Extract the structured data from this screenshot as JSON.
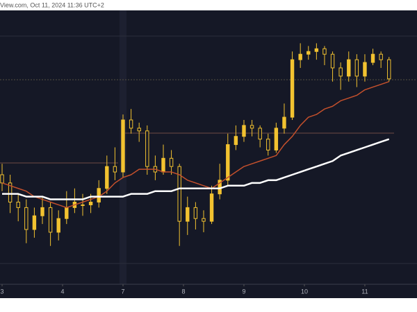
{
  "chart_data": {
    "type": "candlestick",
    "title": "View.com, Oct 11, 2024 11:36 UTC+2",
    "x": [
      0,
      1,
      2,
      3,
      4,
      5,
      6,
      7,
      8,
      9,
      10,
      11,
      12,
      13,
      14,
      15,
      16,
      17,
      18,
      19,
      20,
      21,
      22,
      23,
      24,
      25,
      26,
      27,
      28,
      29,
      30,
      31,
      32,
      33,
      34,
      35,
      36,
      37,
      38,
      39,
      40,
      41,
      42,
      43,
      44,
      45,
      46,
      47,
      48
    ],
    "open": [
      40,
      37,
      30,
      28,
      20,
      25,
      28,
      19,
      24,
      28,
      29,
      29,
      30,
      35,
      43,
      41,
      60,
      57,
      56,
      43,
      41,
      46,
      43,
      23,
      28,
      24,
      23,
      33,
      38,
      51,
      54,
      58,
      57,
      53,
      49,
      57,
      61,
      82,
      84,
      85,
      86,
      84,
      79,
      76,
      82,
      76,
      81,
      84,
      82
    ],
    "high": [
      44,
      40,
      33,
      31,
      28,
      32,
      30,
      27,
      34,
      35,
      33,
      33,
      38,
      47,
      50,
      62,
      64,
      59,
      58,
      47,
      51,
      49,
      44,
      32,
      30,
      27,
      36,
      44,
      55,
      58,
      60,
      60,
      58,
      55,
      59,
      66,
      85,
      88,
      87,
      88,
      87,
      85,
      81,
      85,
      84,
      84,
      86,
      85,
      83
    ],
    "low": [
      34,
      26,
      23,
      15,
      17,
      22,
      14,
      16,
      22,
      26,
      25,
      26,
      28,
      33,
      38,
      39,
      55,
      52,
      40,
      38,
      40,
      40,
      14,
      18,
      20,
      19,
      22,
      31,
      36,
      49,
      52,
      54,
      50,
      47,
      48,
      55,
      60,
      79,
      82,
      82,
      80,
      74,
      71,
      74,
      72,
      74,
      80,
      79,
      74
    ],
    "close": [
      37,
      30,
      28,
      20,
      25,
      28,
      19,
      24,
      28,
      30,
      29,
      30,
      35,
      43,
      41,
      60,
      57,
      56,
      43,
      41,
      46,
      43,
      23,
      28,
      24,
      23,
      33,
      38,
      51,
      54,
      58,
      57,
      53,
      49,
      57,
      61,
      82,
      84,
      85,
      86,
      84,
      79,
      76,
      82,
      76,
      81,
      84,
      82,
      75
    ],
    "color": "#f2c230",
    "series": [
      {
        "color": "#c4502c",
        "values": [
          37,
          36,
          35,
          34,
          32,
          31,
          30,
          29,
          28,
          29,
          30,
          31,
          32,
          34,
          37,
          39,
          40,
          42,
          42,
          42,
          41,
          41,
          40,
          38,
          37,
          36,
          35,
          37,
          39,
          41,
          43,
          44,
          45,
          46,
          47,
          51,
          54,
          58,
          61,
          62,
          64,
          65,
          67,
          68,
          69,
          71,
          72,
          73,
          74
        ]
      },
      {
        "color": "#ffffff",
        "values": [
          33,
          33,
          33,
          32,
          32,
          32,
          31,
          31,
          31,
          31,
          31,
          32,
          32,
          32,
          32,
          32,
          33,
          33,
          33,
          34,
          34,
          34,
          35,
          35,
          35,
          35,
          35,
          35,
          36,
          36,
          36,
          37,
          37,
          38,
          38,
          39,
          40,
          41,
          42,
          43,
          44,
          45,
          47,
          48,
          49,
          50,
          51,
          52,
          53
        ]
      }
    ],
    "xlim": [
      -0.26,
      51.47
    ],
    "xticks": [
      {
        "value": 0,
        "label": "3"
      },
      {
        "value": 7.5,
        "label": "4"
      },
      {
        "value": 15,
        "label": "7"
      },
      {
        "value": 22.5,
        "label": "8"
      },
      {
        "value": 30,
        "label": "9"
      },
      {
        "value": 37.5,
        "label": "10"
      },
      {
        "value": 45,
        "label": "11"
      }
    ],
    "ylim": [
      0,
      100
    ]
  }
}
